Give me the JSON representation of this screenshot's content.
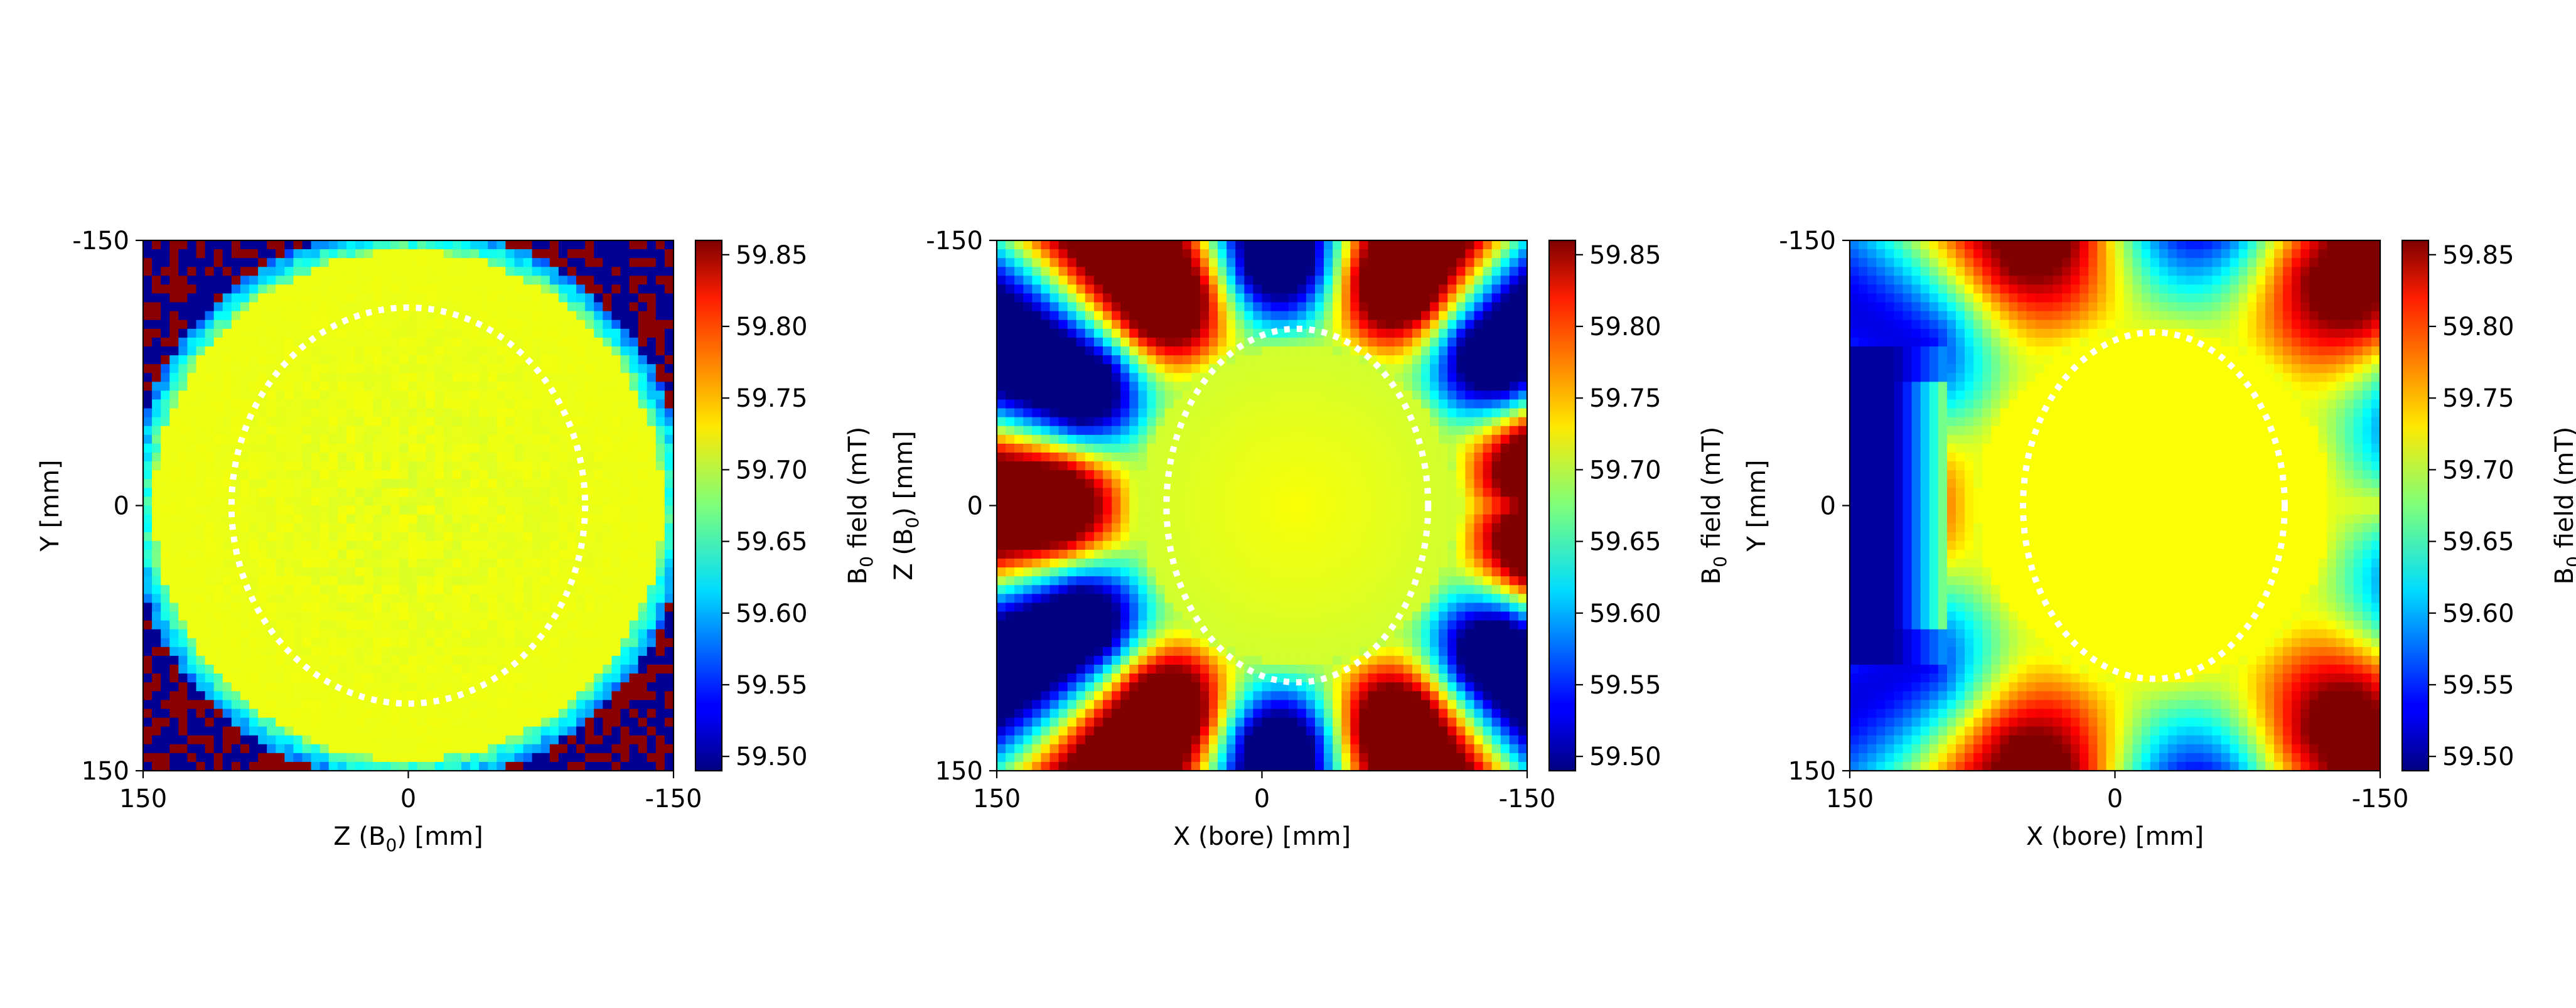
{
  "chart_data": [
    {
      "type": "heatmap",
      "title": "",
      "xlabel": "Z (B0) [mm]",
      "ylabel": "Y [mm]",
      "xlabel_parts": {
        "pre": "Z (B",
        "sub": "0",
        "post": ") [mm]"
      },
      "ylabel_parts": {
        "pre": "Y [mm]",
        "sub": "",
        "post": ""
      },
      "x_ticks": [
        "150",
        "0",
        "-150"
      ],
      "y_ticks": [
        "-150",
        "0",
        "150"
      ],
      "xlim": [
        150,
        -150
      ],
      "ylim": [
        -150,
        150
      ],
      "grid": false,
      "field_pattern": "sphere",
      "colorbar": {
        "label": "B0 field (mT)",
        "label_parts": {
          "pre": "B",
          "sub": "0",
          "post": " field (mT)"
        },
        "range": [
          59.49,
          59.86
        ],
        "ticks": [
          "59.85",
          "59.80",
          "59.75",
          "59.70",
          "59.65",
          "59.60",
          "59.55",
          "59.50"
        ],
        "colormap": "jet"
      },
      "ellipse": {
        "center_x": 0,
        "center_y": 0,
        "radius_x": 100,
        "radius_y": 112,
        "style": "dotted",
        "color": "#ffffff"
      }
    },
    {
      "type": "heatmap",
      "title": "",
      "xlabel": "X (bore) [mm]",
      "ylabel": "Z (B0) [mm]",
      "xlabel_parts": {
        "pre": "X (bore) [mm]",
        "sub": "",
        "post": ""
      },
      "ylabel_parts": {
        "pre": "Z (B",
        "sub": "0",
        "post": ") [mm]"
      },
      "x_ticks": [
        "150",
        "0",
        "-150"
      ],
      "y_ticks": [
        "-150",
        "0",
        "150"
      ],
      "xlim": [
        150,
        -150
      ],
      "ylim": [
        -150,
        150
      ],
      "grid": false,
      "field_pattern": "ring",
      "colorbar": {
        "label": "B0 field (mT)",
        "label_parts": {
          "pre": "B",
          "sub": "0",
          "post": " field (mT)"
        },
        "range": [
          59.49,
          59.86
        ],
        "ticks": [
          "59.85",
          "59.80",
          "59.75",
          "59.70",
          "59.65",
          "59.60",
          "59.55",
          "59.50"
        ],
        "colormap": "jet"
      },
      "ellipse": {
        "center_x": -20,
        "center_y": 0,
        "radius_x": 74,
        "radius_y": 100,
        "style": "dotted",
        "color": "#ffffff"
      }
    },
    {
      "type": "heatmap",
      "title": "",
      "xlabel": "X (bore) [mm]",
      "ylabel": "Y [mm]",
      "xlabel_parts": {
        "pre": "X (bore) [mm]",
        "sub": "",
        "post": ""
      },
      "ylabel_parts": {
        "pre": "Y [mm]",
        "sub": "",
        "post": ""
      },
      "x_ticks": [
        "150",
        "0",
        "-150"
      ],
      "y_ticks": [
        "-150",
        "0",
        "150"
      ],
      "xlim": [
        150,
        -150
      ],
      "ylim": [
        -150,
        150
      ],
      "grid": false,
      "field_pattern": "side",
      "colorbar": {
        "label": "B0 field (mT)",
        "label_parts": {
          "pre": "B",
          "sub": "0",
          "post": " field (mT)"
        },
        "range": [
          59.49,
          59.86
        ],
        "ticks": [
          "59.85",
          "59.80",
          "59.75",
          "59.70",
          "59.65",
          "59.60",
          "59.55",
          "59.50"
        ],
        "colormap": "jet"
      },
      "ellipse": {
        "center_x": -22,
        "center_y": 0,
        "radius_x": 74,
        "radius_y": 98,
        "style": "dotted",
        "color": "#ffffff"
      }
    }
  ]
}
